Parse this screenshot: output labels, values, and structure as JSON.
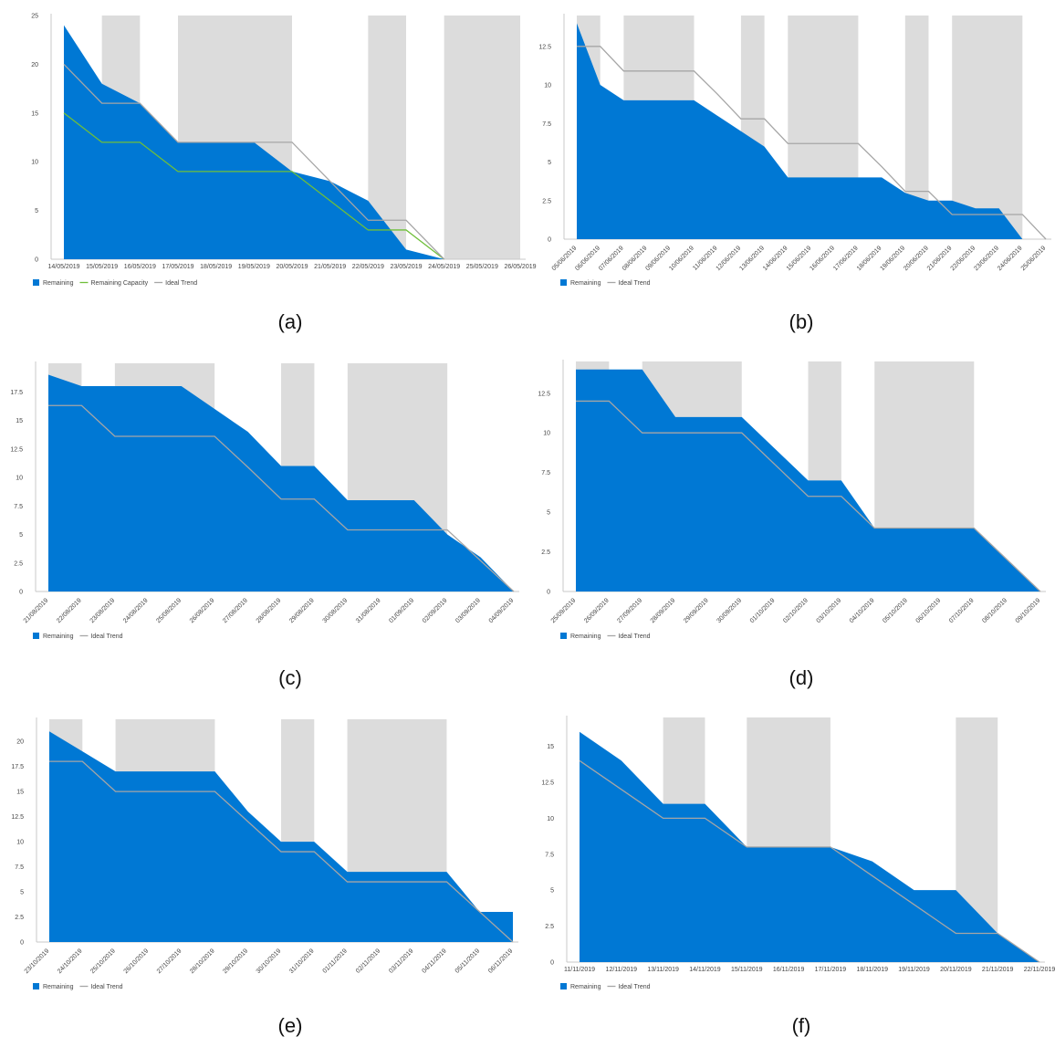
{
  "colors": {
    "remaining": "#0078d4",
    "ideal": "#a6a6a6",
    "capacity": "#6fbf3a",
    "nonworking": "#dcdcdc",
    "axis": "#c8c8c8"
  },
  "chart_data": [
    {
      "type": "area",
      "caption": "(a)",
      "categories": [
        "14/05/2019",
        "15/05/2019",
        "16/05/2019",
        "17/05/2019",
        "18/05/2019",
        "19/05/2019",
        "20/05/2019",
        "21/05/2019",
        "22/05/2019",
        "23/05/2019",
        "24/05/2019",
        "25/05/2019",
        "26/05/2019"
      ],
      "rotate_labels": false,
      "ylim": [
        0,
        25
      ],
      "yticks": [
        0,
        5,
        10,
        15,
        20,
        25
      ],
      "ytick_labels": [
        "0",
        "5",
        "10",
        "15",
        "20",
        "25"
      ],
      "nonworking_periods": [
        [
          1,
          2
        ],
        [
          3,
          6
        ],
        [
          8,
          9
        ],
        [
          10,
          12
        ]
      ],
      "series": [
        {
          "name": "Remaining",
          "kind": "area",
          "values": [
            24,
            18,
            16,
            12,
            12,
            12,
            9,
            8,
            6,
            1,
            0,
            null,
            null
          ]
        },
        {
          "name": "Remaining Capacity",
          "kind": "line",
          "values": [
            15,
            12,
            12,
            9,
            9,
            9,
            9,
            6,
            3,
            3,
            0,
            null,
            null
          ]
        },
        {
          "name": "Ideal Trend",
          "kind": "line",
          "values": [
            20,
            16,
            16,
            12,
            12,
            12,
            12,
            8,
            4,
            4,
            0,
            null,
            null
          ]
        }
      ]
    },
    {
      "type": "area",
      "caption": "(b)",
      "categories": [
        "05/06/2019",
        "06/06/2019",
        "07/06/2019",
        "08/06/2019",
        "09/06/2019",
        "10/06/2019",
        "11/06/2019",
        "12/06/2019",
        "13/06/2019",
        "14/06/2019",
        "15/06/2019",
        "16/06/2019",
        "17/06/2019",
        "18/06/2019",
        "19/06/2019",
        "20/06/2019",
        "21/06/2019",
        "22/06/2019",
        "23/06/2019",
        "24/06/2019",
        "25/06/2019"
      ],
      "rotate_labels": true,
      "ylim": [
        0,
        14.5
      ],
      "yticks": [
        0,
        2.5,
        5,
        7.5,
        10,
        12.5
      ],
      "ytick_labels": [
        "0",
        "2.5",
        "5",
        "7.5",
        "10",
        "12.5"
      ],
      "nonworking_periods": [
        [
          0,
          1
        ],
        [
          2,
          5
        ],
        [
          7,
          8
        ],
        [
          9,
          12
        ],
        [
          14,
          15
        ],
        [
          16,
          19
        ]
      ],
      "series": [
        {
          "name": "Remaining",
          "kind": "area",
          "values": [
            14,
            10,
            9,
            9,
            9,
            9,
            8,
            7,
            6,
            4,
            4,
            4,
            4,
            4,
            3,
            2.5,
            2.5,
            2,
            2,
            0,
            null
          ]
        },
        {
          "name": "Ideal Trend",
          "kind": "line",
          "values": [
            12.5,
            12.5,
            10.9,
            10.9,
            10.9,
            10.9,
            9.4,
            7.8,
            7.8,
            6.2,
            6.2,
            6.2,
            6.2,
            4.7,
            3.1,
            3.1,
            1.6,
            1.6,
            1.6,
            1.6,
            0
          ]
        }
      ]
    },
    {
      "type": "area",
      "caption": "(c)",
      "categories": [
        "21/08/2019",
        "22/08/2019",
        "23/08/2019",
        "24/08/2019",
        "25/08/2019",
        "26/08/2019",
        "27/08/2019",
        "28/08/2019",
        "29/08/2019",
        "30/08/2019",
        "31/08/2019",
        "01/09/2019",
        "02/09/2019",
        "03/09/2019",
        "04/09/2019"
      ],
      "rotate_labels": true,
      "ylim": [
        0,
        20
      ],
      "yticks": [
        0,
        2.5,
        5,
        7.5,
        10,
        12.5,
        15,
        17.5
      ],
      "ytick_labels": [
        "0",
        "2.5",
        "5",
        "7.5",
        "10",
        "12.5",
        "15",
        "17.5"
      ],
      "nonworking_periods": [
        [
          0,
          1
        ],
        [
          2,
          5
        ],
        [
          7,
          8
        ],
        [
          9,
          12
        ]
      ],
      "series": [
        {
          "name": "Remaining",
          "kind": "area",
          "values": [
            19,
            18,
            18,
            18,
            18,
            16,
            14,
            11,
            11,
            8,
            8,
            8,
            5,
            3,
            0
          ]
        },
        {
          "name": "Ideal Trend",
          "kind": "line",
          "values": [
            16.3,
            16.3,
            13.6,
            13.6,
            13.6,
            13.6,
            10.9,
            8.1,
            8.1,
            5.4,
            5.4,
            5.4,
            5.4,
            2.7,
            0
          ]
        }
      ]
    },
    {
      "type": "area",
      "caption": "(d)",
      "categories": [
        "25/09/2019",
        "26/09/2019",
        "27/09/2019",
        "28/09/2019",
        "29/09/2019",
        "30/09/2019",
        "01/10/2019",
        "02/10/2019",
        "03/10/2019",
        "04/10/2019",
        "05/10/2019",
        "06/10/2019",
        "07/10/2019",
        "08/10/2019",
        "09/10/2019"
      ],
      "rotate_labels": true,
      "ylim": [
        0,
        14.5
      ],
      "yticks": [
        0,
        2.5,
        5,
        7.5,
        10,
        12.5
      ],
      "ytick_labels": [
        "0",
        "2.5",
        "5",
        "7.5",
        "10",
        "12.5"
      ],
      "nonworking_periods": [
        [
          0,
          1
        ],
        [
          2,
          5
        ],
        [
          7,
          8
        ],
        [
          9,
          12
        ]
      ],
      "series": [
        {
          "name": "Remaining",
          "kind": "area",
          "values": [
            14,
            14,
            14,
            11,
            11,
            11,
            9,
            7,
            7,
            4,
            4,
            4,
            4,
            2,
            0
          ]
        },
        {
          "name": "Ideal Trend",
          "kind": "line",
          "values": [
            12,
            12,
            10,
            10,
            10,
            10,
            8,
            6,
            6,
            4,
            4,
            4,
            4,
            2,
            0
          ]
        }
      ]
    },
    {
      "type": "area",
      "caption": "(e)",
      "categories": [
        "23/10/2019",
        "24/10/2019",
        "25/10/2019",
        "26/10/2019",
        "27/10/2019",
        "28/10/2019",
        "29/10/2019",
        "30/10/2019",
        "31/10/2019",
        "01/11/2019",
        "02/11/2019",
        "03/11/2019",
        "04/11/2019",
        "05/11/2019",
        "06/11/2019"
      ],
      "rotate_labels": true,
      "ylim": [
        0,
        22.2
      ],
      "yticks": [
        0,
        2.5,
        5,
        7.5,
        10,
        12.5,
        15,
        17.5,
        20
      ],
      "ytick_labels": [
        "0",
        "2.5",
        "5",
        "7.5",
        "10",
        "12.5",
        "15",
        "17.5",
        "20"
      ],
      "nonworking_periods": [
        [
          0,
          1
        ],
        [
          2,
          5
        ],
        [
          7,
          8
        ],
        [
          9,
          12
        ]
      ],
      "series": [
        {
          "name": "Remaining",
          "kind": "area",
          "values": [
            21,
            19,
            17,
            17,
            17,
            17,
            13,
            10,
            10,
            7,
            7,
            7,
            7,
            3,
            3
          ]
        },
        {
          "name": "Ideal Trend",
          "kind": "line",
          "values": [
            18,
            18,
            15,
            15,
            15,
            15,
            12,
            9,
            9,
            6,
            6,
            6,
            6,
            3,
            0
          ]
        }
      ]
    },
    {
      "type": "area",
      "caption": "(f)",
      "categories": [
        "11/11/2019",
        "12/11/2019",
        "13/11/2019",
        "14/11/2019",
        "15/11/2019",
        "16/11/2019",
        "17/11/2019",
        "18/11/2019",
        "19/11/2019",
        "20/11/2019",
        "21/11/2019",
        "22/11/2019"
      ],
      "rotate_labels": false,
      "ylim": [
        0,
        17
      ],
      "yticks": [
        0,
        2.5,
        5,
        7.5,
        10,
        12.5,
        15
      ],
      "ytick_labels": [
        "0",
        "2.5",
        "5",
        "7.5",
        "10",
        "12.5",
        "15"
      ],
      "nonworking_periods": [
        [
          2,
          3
        ],
        [
          4,
          6
        ],
        [
          9,
          10
        ]
      ],
      "series": [
        {
          "name": "Remaining",
          "kind": "area",
          "values": [
            16,
            14,
            11,
            11,
            8,
            8,
            8,
            7,
            5,
            5,
            2,
            0
          ]
        },
        {
          "name": "Ideal Trend",
          "kind": "line",
          "values": [
            14,
            12,
            10,
            10,
            8,
            8,
            8,
            6,
            4,
            2,
            2,
            0
          ]
        }
      ]
    }
  ]
}
